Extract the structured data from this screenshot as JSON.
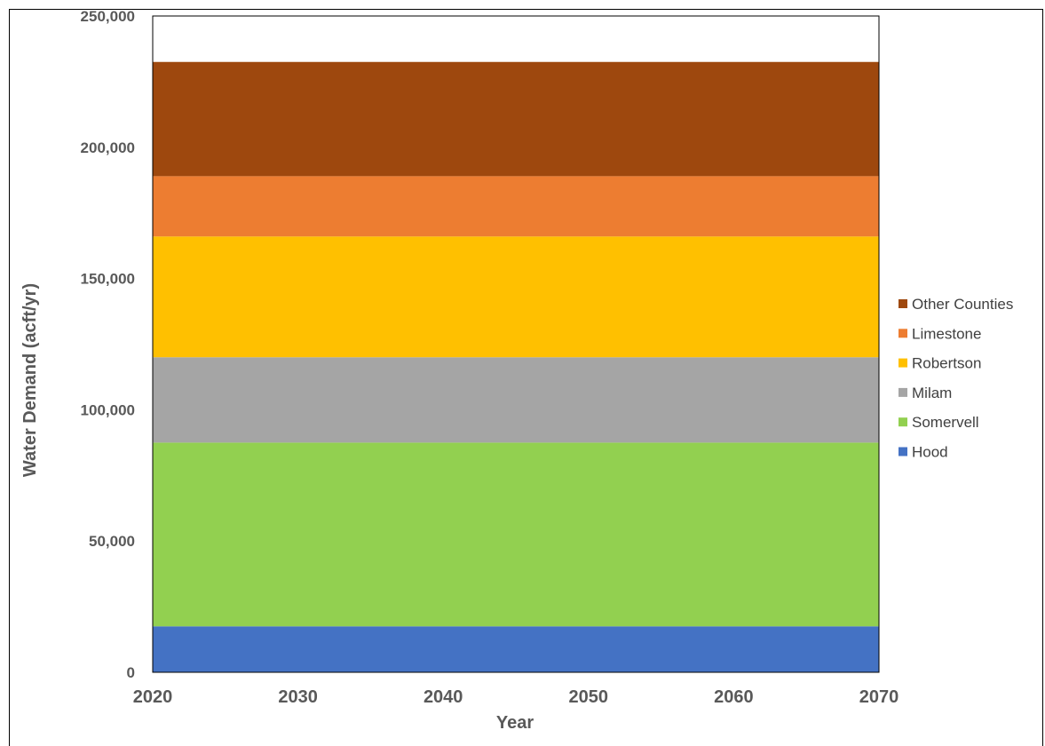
{
  "chart_data": {
    "type": "area",
    "stacked": true,
    "title": "",
    "xlabel": "Year",
    "ylabel": "Water Demand (acft/yr)",
    "x": [
      2020,
      2030,
      2040,
      2050,
      2060,
      2070
    ],
    "xlim": [
      2020,
      2070
    ],
    "ylim": [
      0,
      250000
    ],
    "y_ticks": [
      0,
      50000,
      100000,
      150000,
      200000,
      250000
    ],
    "y_tick_labels": [
      "0",
      "50,000",
      "100,000",
      "150,000",
      "200,000",
      "250,000"
    ],
    "x_tick_labels": [
      "2020",
      "2030",
      "2040",
      "2050",
      "2060",
      "2070"
    ],
    "grid": false,
    "legend_position": "right",
    "series": [
      {
        "name": "Hood",
        "color": "#4472C4",
        "values": [
          17500,
          17500,
          17500,
          17500,
          17500,
          17500
        ]
      },
      {
        "name": "Somervell",
        "color": "#92D050",
        "values": [
          70000,
          70000,
          70000,
          70000,
          70000,
          70000
        ]
      },
      {
        "name": "Milam",
        "color": "#A5A5A5",
        "values": [
          32500,
          32500,
          32500,
          32500,
          32500,
          32500
        ]
      },
      {
        "name": "Robertson",
        "color": "#FFC000",
        "values": [
          46000,
          46000,
          46000,
          46000,
          46000,
          46000
        ]
      },
      {
        "name": "Limestone",
        "color": "#ED7D31",
        "values": [
          23000,
          23000,
          23000,
          23000,
          23000,
          23000
        ]
      },
      {
        "name": "Other Counties",
        "color": "#9E480E",
        "values": [
          43500,
          43500,
          43500,
          43500,
          43500,
          43500
        ]
      }
    ]
  }
}
